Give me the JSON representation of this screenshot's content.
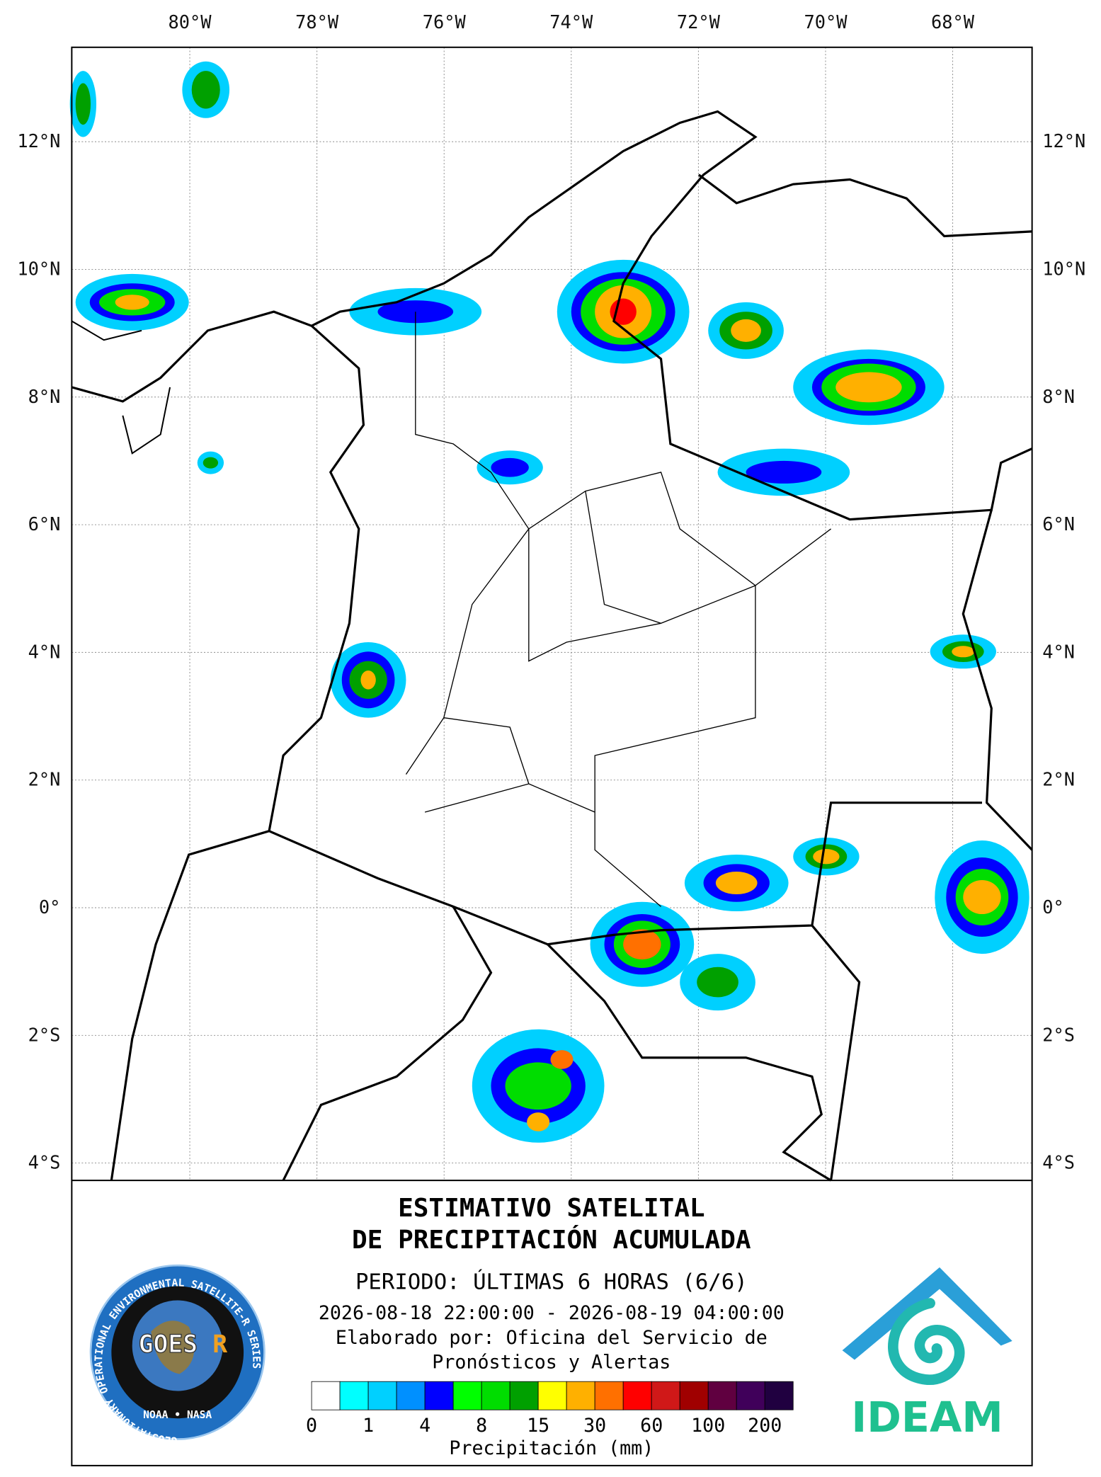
{
  "map": {
    "lon_ticks": [
      {
        "value": -80,
        "label": "80°W"
      },
      {
        "value": -78,
        "label": "78°W"
      },
      {
        "value": -76,
        "label": "76°W"
      },
      {
        "value": -74,
        "label": "74°W"
      },
      {
        "value": -72,
        "label": "72°W"
      },
      {
        "value": -70,
        "label": "70°W"
      },
      {
        "value": -68,
        "label": "68°W"
      }
    ],
    "lat_ticks": [
      {
        "value": 12,
        "label": "12°N"
      },
      {
        "value": 10,
        "label": "10°N"
      },
      {
        "value": 8,
        "label": "8°N"
      },
      {
        "value": 6,
        "label": "6°N"
      },
      {
        "value": 4,
        "label": "4°N"
      },
      {
        "value": 2,
        "label": "2°N"
      },
      {
        "value": 0,
        "label": "0°"
      },
      {
        "value": -2,
        "label": "2°S"
      },
      {
        "value": -4,
        "label": "4°S"
      }
    ]
  },
  "title": [
    "ESTIMATIVO SATELITAL",
    "DE PRECIPITACIÓN ACUMULADA"
  ],
  "period": "PERIODO: ÚLTIMAS 6 HORAS (6/6)",
  "dates": "2026-08-18 22:00:00 - 2026-08-19 04:00:00",
  "credit": [
    "Elaborado por: Oficina del Servicio de",
    "Pronósticos y Alertas"
  ],
  "legend": {
    "colors": [
      "#ffffff",
      "#00ffff",
      "#00d0ff",
      "#0090ff",
      "#0000ff",
      "#00ff00",
      "#00dd00",
      "#00a000",
      "#ffff00",
      "#ffb000",
      "#ff7000",
      "#ff0000",
      "#d01818",
      "#a00000",
      "#600040",
      "#40005a",
      "#200040"
    ],
    "ticks": [
      0,
      1,
      4,
      8,
      15,
      30,
      60,
      100,
      200
    ],
    "title": "Precipitación (mm)"
  },
  "logos": {
    "goes_ring": "GEOSTATIONARY OPERATIONAL ENVIRONMENTAL SATELLITE-R SERIES",
    "goes_name": "GOES",
    "goes_r": "R",
    "goes_agencies": "NOAA • NASA",
    "ideam": "IDEAM"
  }
}
